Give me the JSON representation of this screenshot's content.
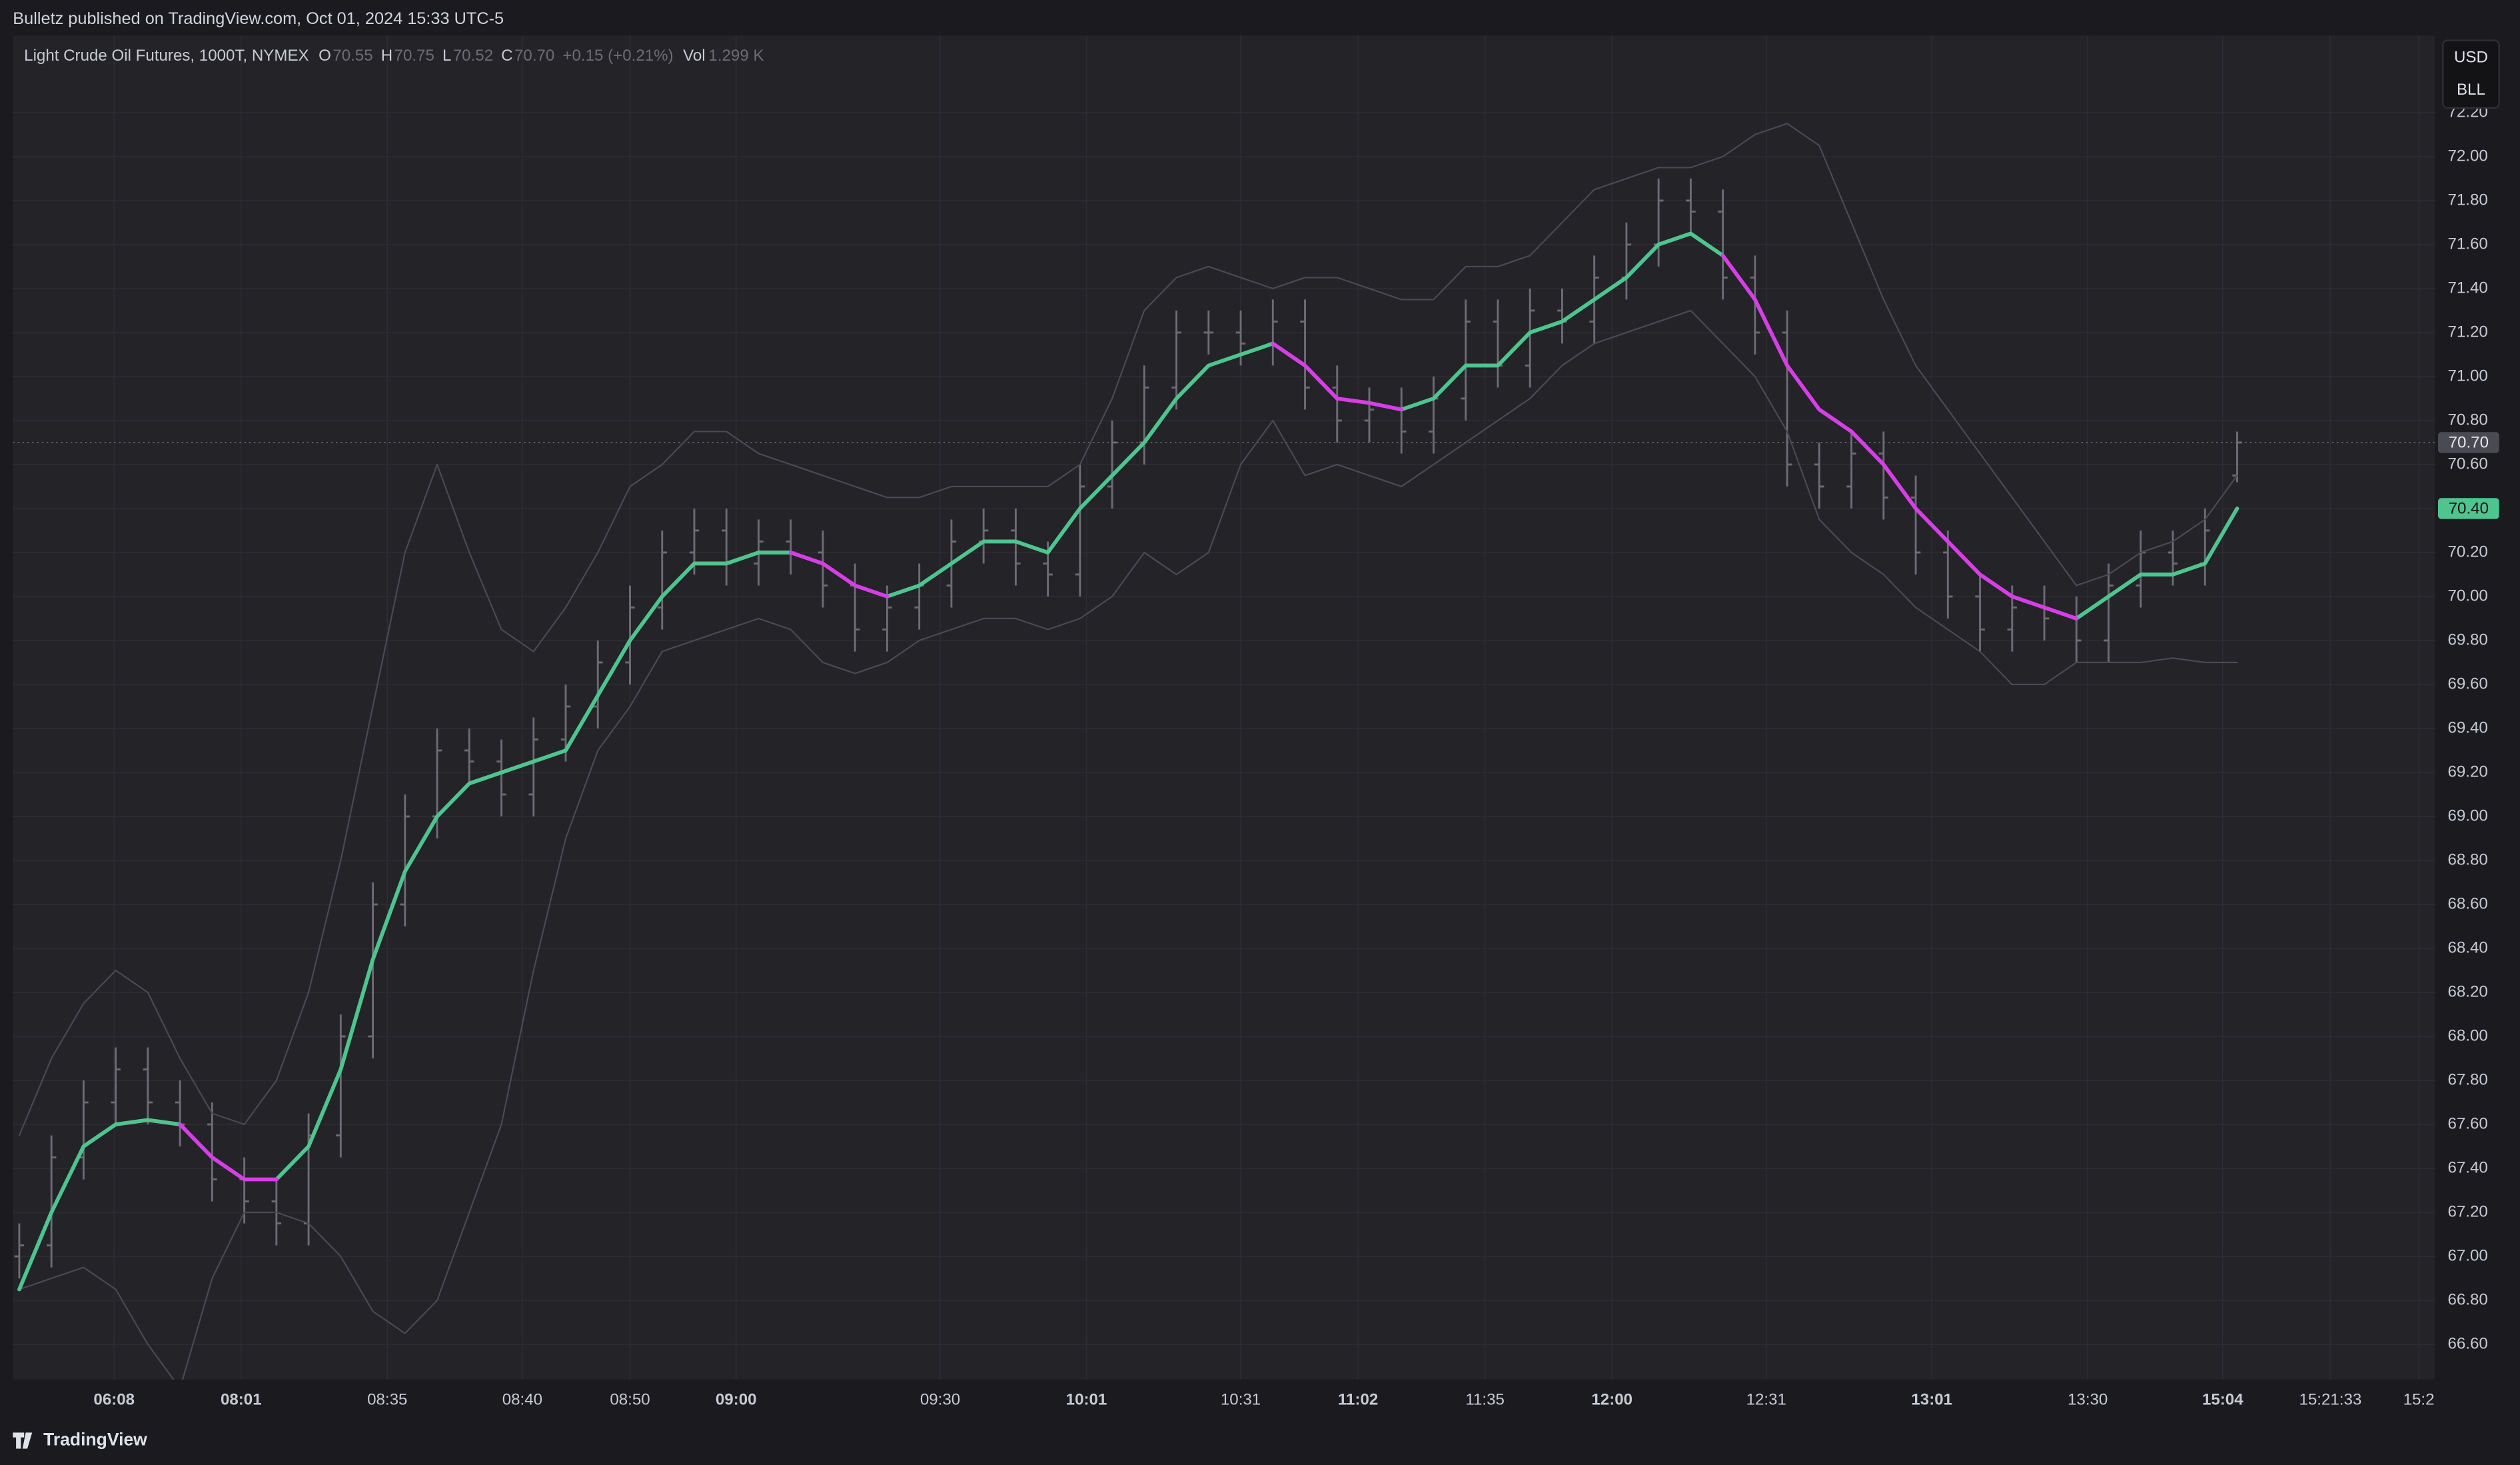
{
  "chart_data": {
    "type": "ohlc",
    "published": "Bulletz published on TradingView.com, Oct 01, 2024 15:33 UTC-5",
    "title": "Light Crude Oil Futures, 1000T, NYMEX",
    "legend_fields": [
      {
        "key": "O",
        "value": "70.55"
      },
      {
        "key": "H",
        "value": "70.75"
      },
      {
        "key": "L",
        "value": "70.52"
      },
      {
        "key": "C",
        "value": "70.70"
      }
    ],
    "change": "+0.15 (+0.21%)",
    "volume_key": "Vol",
    "volume": "1.299 K",
    "currency": "USD",
    "unit": "BLL",
    "brand": "TradingView",
    "bar_color": "#6c6c74",
    "open": [
      67.0,
      67.05,
      67.45,
      67.7,
      67.85,
      67.7,
      67.6,
      67.35,
      67.25,
      67.15,
      67.55,
      68.0,
      68.6,
      69.0,
      69.3,
      69.25,
      69.1,
      69.35,
      69.5,
      69.7,
      69.95,
      70.2,
      70.3,
      70.15,
      70.25,
      70.2,
      70.05,
      69.85,
      69.95,
      70.05,
      70.25,
      70.3,
      70.15,
      70.1,
      70.5,
      70.7,
      70.95,
      71.2,
      71.2,
      71.15,
      71.25,
      70.95,
      70.8,
      70.85,
      70.75,
      70.9,
      71.25,
      71.05,
      71.3,
      71.25,
      71.45,
      71.6,
      71.8,
      71.75,
      71.45,
      71.2,
      70.6,
      70.5,
      70.65,
      70.45,
      70.2,
      70.0,
      69.85,
      69.95,
      69.9,
      69.8,
      70.05,
      70.2,
      70.15,
      70.55
    ],
    "high": [
      67.15,
      67.55,
      67.8,
      67.95,
      67.95,
      67.8,
      67.7,
      67.45,
      67.35,
      67.65,
      68.1,
      68.7,
      69.1,
      69.4,
      69.4,
      69.35,
      69.45,
      69.6,
      69.8,
      70.05,
      70.3,
      70.4,
      70.4,
      70.35,
      70.35,
      70.3,
      70.15,
      70.05,
      70.15,
      70.35,
      70.4,
      70.4,
      70.25,
      70.6,
      70.8,
      71.05,
      71.3,
      71.3,
      71.3,
      71.35,
      71.35,
      71.05,
      70.95,
      70.95,
      71.0,
      71.35,
      71.35,
      71.4,
      71.4,
      71.55,
      71.7,
      71.9,
      71.9,
      71.85,
      71.55,
      71.3,
      70.7,
      70.75,
      70.75,
      70.55,
      70.3,
      70.1,
      70.05,
      70.05,
      70.0,
      70.15,
      70.3,
      70.3,
      70.4,
      70.75
    ],
    "low": [
      66.9,
      66.95,
      67.35,
      67.6,
      67.6,
      67.5,
      67.25,
      67.15,
      67.05,
      67.05,
      67.45,
      67.9,
      68.5,
      68.9,
      69.15,
      69.0,
      69.0,
      69.25,
      69.4,
      69.6,
      69.85,
      70.1,
      70.05,
      70.05,
      70.1,
      69.95,
      69.75,
      69.75,
      69.85,
      69.95,
      70.15,
      70.05,
      70.0,
      70.0,
      70.4,
      70.6,
      70.85,
      71.1,
      71.05,
      71.05,
      70.85,
      70.7,
      70.7,
      70.65,
      70.65,
      70.8,
      70.95,
      70.95,
      71.15,
      71.15,
      71.35,
      71.5,
      71.65,
      71.35,
      71.1,
      70.5,
      70.4,
      70.4,
      70.35,
      70.1,
      69.9,
      69.75,
      69.75,
      69.8,
      69.7,
      69.7,
      69.95,
      70.05,
      70.05,
      70.52
    ],
    "close": [
      67.05,
      67.45,
      67.7,
      67.85,
      67.7,
      67.6,
      67.35,
      67.25,
      67.15,
      67.55,
      68.0,
      68.6,
      69.0,
      69.3,
      69.25,
      69.1,
      69.35,
      69.5,
      69.7,
      69.95,
      70.2,
      70.3,
      70.15,
      70.25,
      70.2,
      70.05,
      69.85,
      69.95,
      70.05,
      70.25,
      70.3,
      70.15,
      70.1,
      70.5,
      70.7,
      70.95,
      71.2,
      71.2,
      71.15,
      71.25,
      70.95,
      70.8,
      70.85,
      70.75,
      70.9,
      71.25,
      71.05,
      71.3,
      71.25,
      71.45,
      71.6,
      71.8,
      71.75,
      71.45,
      71.2,
      70.6,
      70.5,
      70.65,
      70.45,
      70.2,
      70.0,
      69.85,
      69.95,
      69.9,
      69.8,
      70.05,
      70.2,
      70.15,
      70.3,
      70.7
    ],
    "overlays": [
      {
        "color": "#4a4a52",
        "width": 0.9,
        "values": [
          67.55,
          67.9,
          68.15,
          68.3,
          68.2,
          67.9,
          67.65,
          67.6,
          67.8,
          68.2,
          68.8,
          69.5,
          70.2,
          70.6,
          70.2,
          69.85,
          69.75,
          69.95,
          70.2,
          70.5,
          70.6,
          70.75,
          70.75,
          70.65,
          70.6,
          70.55,
          70.5,
          70.45,
          70.45,
          70.5,
          70.5,
          70.5,
          70.5,
          70.6,
          70.9,
          71.3,
          71.45,
          71.5,
          71.45,
          71.4,
          71.45,
          71.45,
          71.4,
          71.35,
          71.35,
          71.5,
          71.5,
          71.55,
          71.7,
          71.85,
          71.9,
          71.95,
          71.95,
          72.0,
          72.1,
          72.15,
          72.05,
          71.7,
          71.35,
          71.05,
          70.85,
          70.65,
          70.45,
          70.25,
          70.05,
          70.1,
          70.2,
          70.25,
          70.35,
          70.55
        ]
      },
      {
        "color": "#4a4a52",
        "width": 0.9,
        "values": [
          66.85,
          66.9,
          66.95,
          66.85,
          66.6,
          66.4,
          66.9,
          67.2,
          67.2,
          67.15,
          67.0,
          66.75,
          66.65,
          66.8,
          67.2,
          67.6,
          68.3,
          68.9,
          69.3,
          69.5,
          69.75,
          69.8,
          69.85,
          69.9,
          69.85,
          69.7,
          69.65,
          69.7,
          69.8,
          69.85,
          69.9,
          69.9,
          69.85,
          69.9,
          70.0,
          70.2,
          70.1,
          70.2,
          70.6,
          70.8,
          70.55,
          70.6,
          70.55,
          70.5,
          70.6,
          70.7,
          70.8,
          70.9,
          71.05,
          71.15,
          71.2,
          71.25,
          71.3,
          71.15,
          71.0,
          70.75,
          70.35,
          70.2,
          70.1,
          69.95,
          69.85,
          69.75,
          69.6,
          69.6,
          69.7,
          69.7,
          69.7,
          69.72,
          69.7,
          69.7
        ]
      },
      {
        "color": "#4ec48f",
        "width": 2.4,
        "values": [
          66.85,
          67.2,
          67.5,
          67.6,
          67.62,
          67.6,
          null,
          null,
          67.35,
          67.5,
          67.85,
          68.35,
          68.75,
          69.0,
          69.15,
          69.2,
          69.25,
          69.3,
          69.55,
          69.8,
          70.0,
          70.15,
          70.15,
          70.2,
          70.2,
          null,
          null,
          70.0,
          70.05,
          70.15,
          70.25,
          70.25,
          70.2,
          70.4,
          70.55,
          70.7,
          70.9,
          71.05,
          71.1,
          71.15,
          null,
          null,
          null,
          70.85,
          70.9,
          71.05,
          71.05,
          71.2,
          71.25,
          71.35,
          71.45,
          71.6,
          71.65,
          71.55,
          null,
          null,
          null,
          null,
          null,
          null,
          null,
          null,
          null,
          null,
          69.9,
          70.0,
          70.1,
          70.1,
          70.15,
          70.4
        ]
      },
      {
        "color": "#d63ee6",
        "width": 2.4,
        "values": [
          null,
          null,
          null,
          null,
          null,
          67.6,
          67.45,
          67.35,
          67.35,
          null,
          null,
          null,
          null,
          null,
          null,
          null,
          null,
          null,
          null,
          null,
          null,
          null,
          null,
          null,
          70.2,
          70.15,
          70.05,
          70.0,
          null,
          null,
          null,
          null,
          null,
          null,
          null,
          null,
          null,
          null,
          null,
          71.15,
          71.05,
          70.9,
          70.88,
          70.85,
          null,
          null,
          null,
          null,
          null,
          null,
          null,
          null,
          null,
          71.55,
          71.35,
          71.05,
          70.85,
          70.75,
          70.6,
          70.4,
          70.25,
          70.1,
          70.0,
          69.95,
          69.9,
          null,
          null,
          null,
          null,
          null
        ]
      }
    ],
    "last_price": {
      "value": 70.7,
      "label": "70.70",
      "color": "#4a4a52"
    },
    "last_ma": {
      "value": 70.4,
      "label": "70.40",
      "color": "#4ec48f"
    },
    "xlim": [
      -0.2,
      75.15
    ],
    "ylim": [
      66.44,
      72.55
    ],
    "grid": true,
    "xticks": [
      {
        "value": 2.95,
        "label": "06:08",
        "bold": true
      },
      {
        "value": 6.9,
        "label": "08:01",
        "bold": true
      },
      {
        "value": 11.45,
        "label": "08:35"
      },
      {
        "value": 15.65,
        "label": "08:40"
      },
      {
        "value": 19,
        "label": "08:50"
      },
      {
        "value": 22.3,
        "label": "09:00",
        "bold": true
      },
      {
        "value": 28.65,
        "label": "09:30"
      },
      {
        "value": 33.2,
        "label": "10:01",
        "bold": true
      },
      {
        "value": 38,
        "label": "10:31"
      },
      {
        "value": 41.65,
        "label": "11:02",
        "bold": true
      },
      {
        "value": 45.6,
        "label": "11:35"
      },
      {
        "value": 49.55,
        "label": "12:00",
        "bold": true
      },
      {
        "value": 54.35,
        "label": "12:31"
      },
      {
        "value": 59.5,
        "label": "13:01",
        "bold": true
      },
      {
        "value": 64.35,
        "label": "13:30"
      },
      {
        "value": 68.55,
        "label": "15:04",
        "bold": true
      },
      {
        "value": 71.9,
        "label": "15:21:33"
      },
      {
        "value": 74.65,
        "label": "15:2"
      }
    ],
    "yticks": [
      {
        "value": 66.6,
        "label": "66.60"
      },
      {
        "value": 66.8,
        "label": "66.80"
      },
      {
        "value": 67,
        "label": "67.00"
      },
      {
        "value": 67.2,
        "label": "67.20"
      },
      {
        "value": 67.4,
        "label": "67.40"
      },
      {
        "value": 67.6,
        "label": "67.60"
      },
      {
        "value": 67.8,
        "label": "67.80"
      },
      {
        "value": 68,
        "label": "68.00"
      },
      {
        "value": 68.2,
        "label": "68.20"
      },
      {
        "value": 68.4,
        "label": "68.40"
      },
      {
        "value": 68.6,
        "label": "68.60"
      },
      {
        "value": 68.8,
        "label": "68.80"
      },
      {
        "value": 69,
        "label": "69.00"
      },
      {
        "value": 69.2,
        "label": "69.20"
      },
      {
        "value": 69.4,
        "label": "69.40"
      },
      {
        "value": 69.6,
        "label": "69.60"
      },
      {
        "value": 69.8,
        "label": "69.80"
      },
      {
        "value": 70,
        "label": "70.00"
      },
      {
        "value": 70.2,
        "label": "70.20"
      },
      {
        "value": 70.4,
        "label": "70.40"
      },
      {
        "value": 70.6,
        "label": "70.60"
      },
      {
        "value": 70.8,
        "label": "70.80"
      },
      {
        "value": 71,
        "label": "71.00"
      },
      {
        "value": 71.2,
        "label": "71.20"
      },
      {
        "value": 71.4,
        "label": "71.40"
      },
      {
        "value": 71.6,
        "label": "71.60"
      },
      {
        "value": 71.8,
        "label": "71.80"
      },
      {
        "value": 72,
        "label": "72.00"
      },
      {
        "value": 72.2,
        "label": "72.20"
      }
    ]
  }
}
